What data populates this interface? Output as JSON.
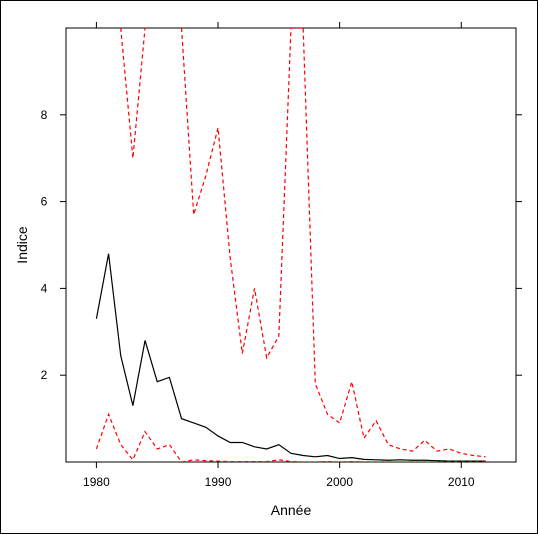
{
  "chart_data": {
    "type": "line",
    "title": "",
    "xlabel": "Année",
    "ylabel": "Indice",
    "xlim": [
      1977.5,
      2014.5
    ],
    "ylim": [
      0,
      10
    ],
    "grid": false,
    "legend": "none",
    "x_ticks": [
      1980,
      1990,
      2000,
      2010
    ],
    "y_ticks": [
      2,
      4,
      6,
      8
    ],
    "x": [
      1980,
      1981,
      1982,
      1983,
      1984,
      1985,
      1986,
      1987,
      1988,
      1989,
      1990,
      1991,
      1992,
      1993,
      1994,
      1995,
      1996,
      1997,
      1998,
      1999,
      2000,
      2001,
      2002,
      2003,
      2004,
      2005,
      2006,
      2007,
      2008,
      2009,
      2010,
      2011,
      2012
    ],
    "series": [
      {
        "style": "solid",
        "color": "#000000",
        "values": [
          3.3,
          4.8,
          2.45,
          1.3,
          2.8,
          1.85,
          1.95,
          1.0,
          0.9,
          0.8,
          0.6,
          0.45,
          0.45,
          0.35,
          0.3,
          0.4,
          0.2,
          0.15,
          0.12,
          0.15,
          0.08,
          0.1,
          0.06,
          0.05,
          0.04,
          0.05,
          0.04,
          0.04,
          0.03,
          0.02,
          0.02,
          0.02,
          0.02
        ]
      },
      {
        "style": "dashed",
        "color": "#ff0000",
        "values": [
          null,
          null,
          10.0,
          7.0,
          10.0,
          null,
          null,
          10.0,
          5.7,
          6.6,
          7.7,
          4.7,
          2.5,
          4.0,
          2.4,
          2.9,
          10.0,
          10.0,
          1.8,
          1.1,
          0.9,
          1.85,
          0.55,
          0.95,
          0.4,
          0.3,
          0.25,
          0.5,
          0.25,
          0.3,
          0.2,
          0.15,
          0.12
        ]
      },
      {
        "style": "dashed",
        "color": "#ff0000",
        "values": [
          0.3,
          1.1,
          0.4,
          0.05,
          0.7,
          0.3,
          0.4,
          0.0,
          0.05,
          0.03,
          0.02,
          0.01,
          0.01,
          0.01,
          0.01,
          0.05,
          0.01,
          0.0,
          0.0,
          0.01,
          0.0,
          0.01,
          0.0,
          0.0,
          0.0,
          0.0,
          0.0,
          0.0,
          0.0,
          0.0,
          0.0,
          0.0,
          0.0
        ]
      }
    ]
  }
}
